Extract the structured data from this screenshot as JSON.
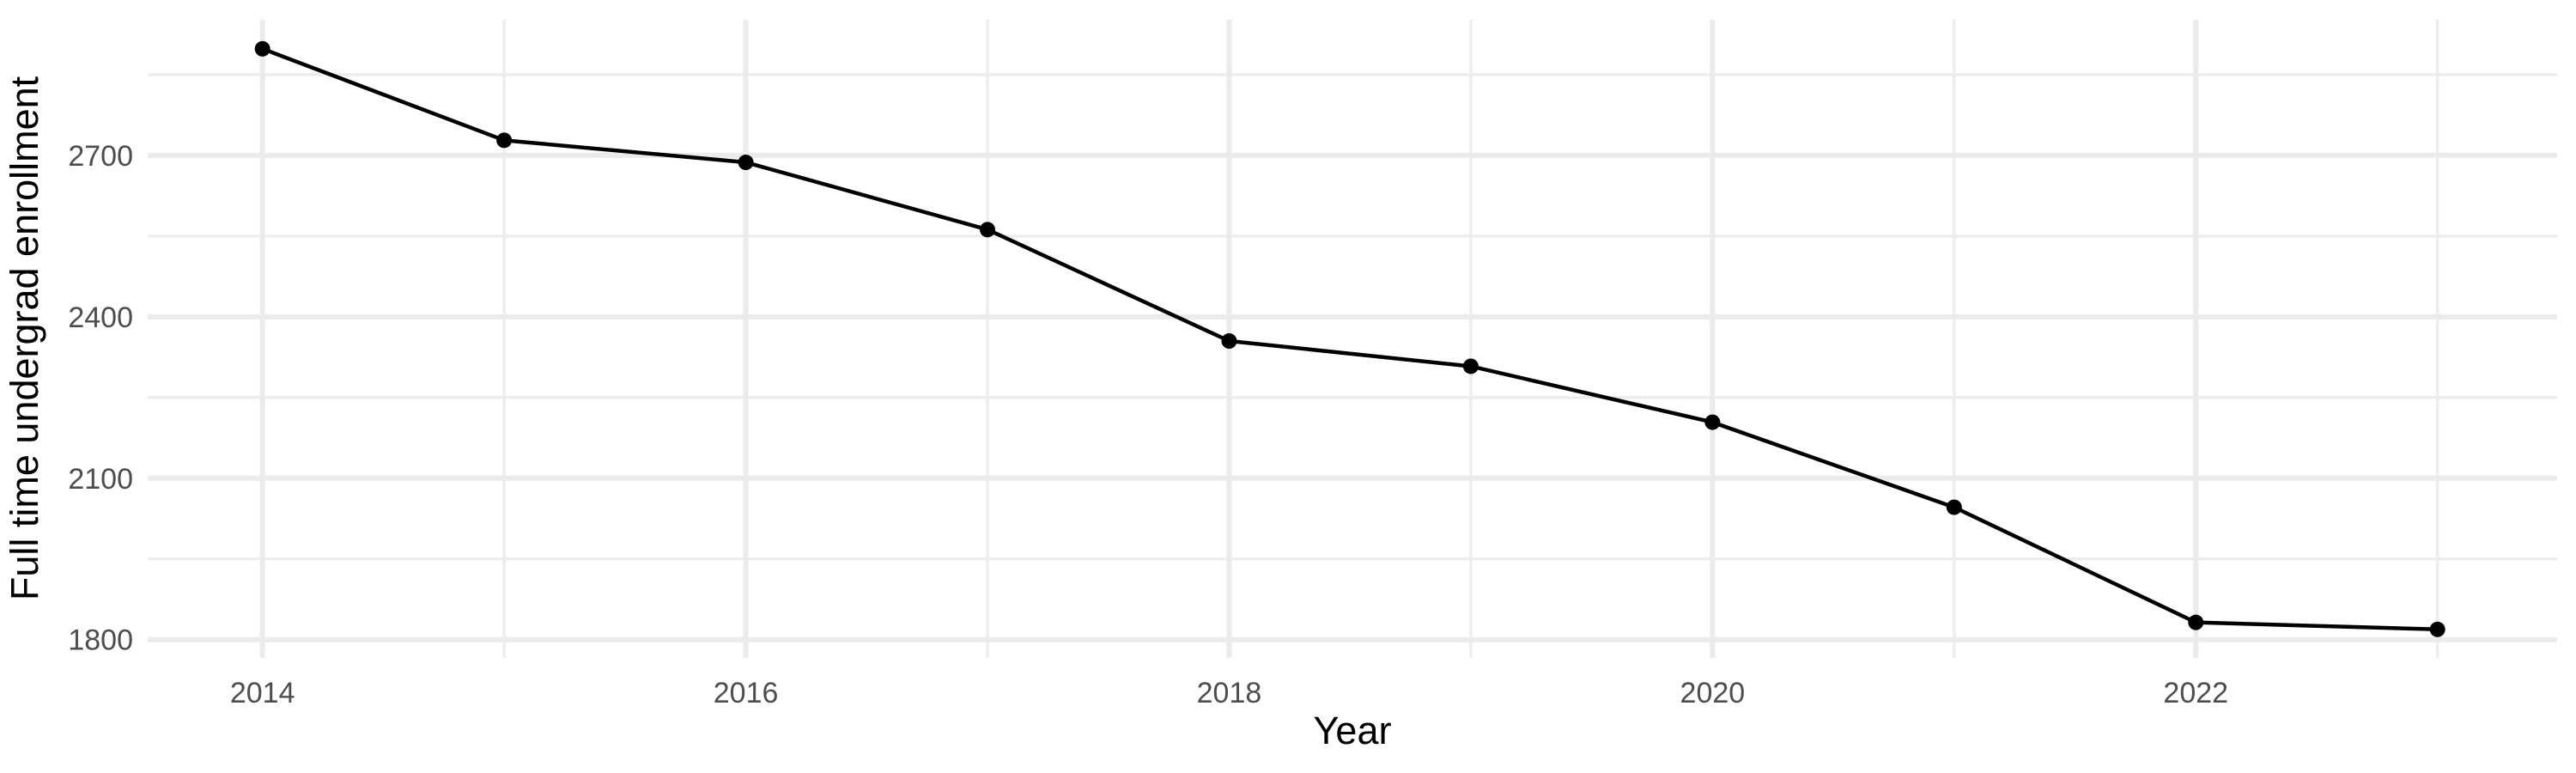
{
  "chart_data": {
    "type": "line",
    "title": "",
    "xlabel": "Year",
    "ylabel": "Full time undergrad enrollment",
    "x": [
      2014,
      2015,
      2016,
      2017,
      2018,
      2019,
      2020,
      2021,
      2022,
      2023
    ],
    "series": [
      {
        "name": "Full time undergrad enrollment",
        "values": [
          2898,
          2728,
          2687,
          2562,
          2355,
          2308,
          2204,
          2046,
          1832,
          1819
        ]
      }
    ],
    "x_ticks_major": [
      2014,
      2016,
      2018,
      2020,
      2022
    ],
    "x_ticks_minor": [
      2015,
      2017,
      2019,
      2021,
      2023
    ],
    "y_ticks_major": [
      1800,
      2100,
      2400,
      2700
    ],
    "y_ticks_minor": [
      1950,
      2250,
      2550,
      2850
    ],
    "xlim": [
      2013.525,
      2023.495
    ],
    "ylim": [
      1766,
      2952
    ],
    "grid": "major-and-minor-on",
    "legend": "none",
    "marker": "filled-circle",
    "colors": {
      "line": "#000000",
      "point": "#000000",
      "grid_major": "#EBEBEB",
      "grid_minor": "#EDEDED",
      "tick_text": "#4D4D4D",
      "axis_title_text": "#000000",
      "background": "#FFFFFF"
    }
  }
}
